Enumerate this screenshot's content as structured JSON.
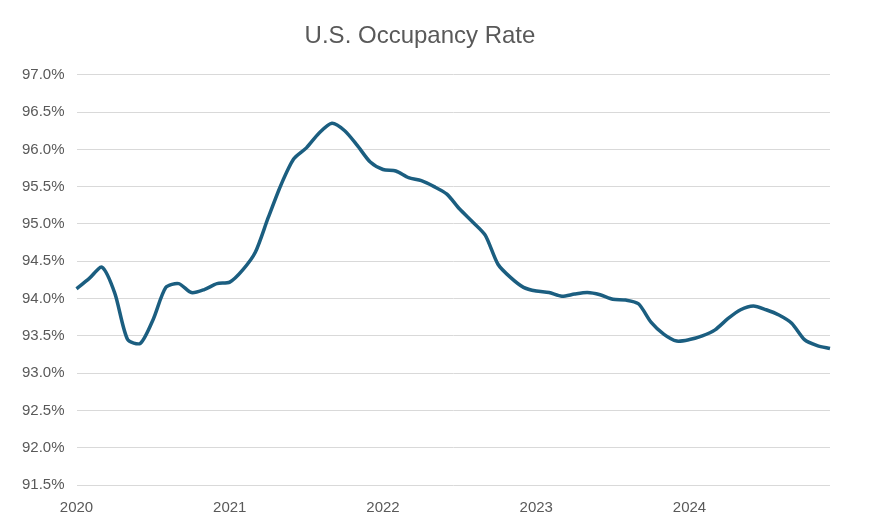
{
  "chart_data": {
    "type": "line",
    "title": "U.S. Occupancy Rate",
    "categories": [
      "2020",
      null,
      null,
      null,
      null,
      null,
      null,
      null,
      null,
      null,
      null,
      null,
      "2021",
      null,
      null,
      null,
      null,
      null,
      null,
      null,
      null,
      null,
      null,
      null,
      "2022",
      null,
      null,
      null,
      null,
      null,
      null,
      null,
      null,
      null,
      null,
      null,
      "2023",
      null,
      null,
      null,
      null,
      null,
      null,
      null,
      null,
      null,
      null,
      null,
      "2024",
      null,
      null,
      null,
      null,
      null,
      null,
      null,
      null,
      null,
      null,
      null
    ],
    "values": [
      94.13,
      94.27,
      94.42,
      94.07,
      93.45,
      93.4,
      93.72,
      94.15,
      94.2,
      94.08,
      94.12,
      94.2,
      94.22,
      94.38,
      94.62,
      95.08,
      95.52,
      95.87,
      96.02,
      96.22,
      96.35,
      96.25,
      96.05,
      95.83,
      95.73,
      95.71,
      95.62,
      95.58,
      95.5,
      95.4,
      95.2,
      95.03,
      94.85,
      94.46,
      94.28,
      94.15,
      94.1,
      94.08,
      94.03,
      94.06,
      94.08,
      94.05,
      93.99,
      93.98,
      93.93,
      93.68,
      93.52,
      93.43,
      93.45,
      93.5,
      93.58,
      93.73,
      93.85,
      93.9,
      93.85,
      93.78,
      93.67,
      93.45,
      93.37,
      93.33
    ],
    "color": "#1b5e80",
    "ylim": [
      91.5,
      97.0
    ],
    "yticks": [
      {
        "value": 91.5,
        "label": "91.5%"
      },
      {
        "value": 92.0,
        "label": "92.0%"
      },
      {
        "value": 92.5,
        "label": "92.5%"
      },
      {
        "value": 93.0,
        "label": "93.0%"
      },
      {
        "value": 93.5,
        "label": "93.5%"
      },
      {
        "value": 94.0,
        "label": "94.0%"
      },
      {
        "value": 94.5,
        "label": "94.5%"
      },
      {
        "value": 95.0,
        "label": "95.0%"
      },
      {
        "value": 95.5,
        "label": "95.5%"
      },
      {
        "value": 96.0,
        "label": "96.0%"
      },
      {
        "value": 96.5,
        "label": "96.5%"
      },
      {
        "value": 97.0,
        "label": "97.0%"
      }
    ],
    "grid": true
  }
}
